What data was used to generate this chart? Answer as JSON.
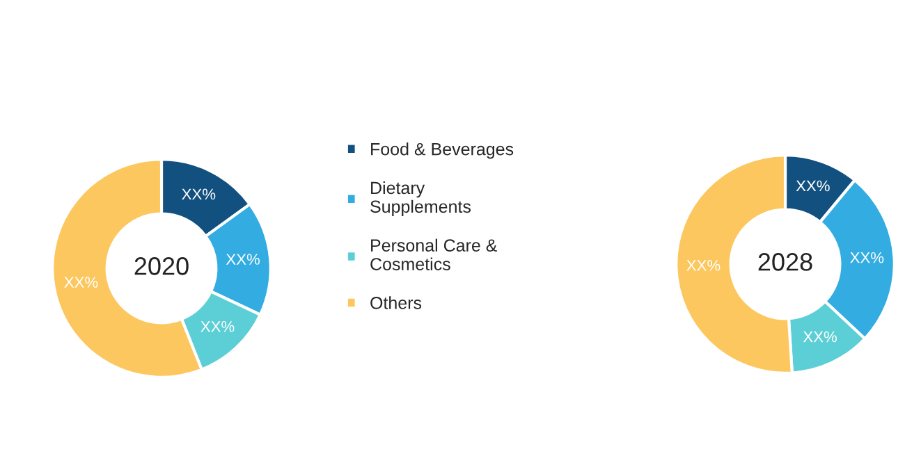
{
  "chart_data": [
    {
      "type": "donut",
      "title": "2020",
      "categories": [
        "Food & Beverages",
        "Dietary\nSupplements",
        "Personal Care &\nCosmetics",
        "Others"
      ],
      "values": [
        15,
        17,
        12,
        56
      ],
      "colors": [
        "#12507f",
        "#33ace2",
        "#5ccfd6",
        "#fcc75f"
      ],
      "value_labels": [
        "XX%",
        "XX%",
        "XX%",
        "XX%"
      ],
      "legend": "right"
    },
    {
      "type": "donut",
      "title": "2028",
      "categories": [
        null,
        null,
        null,
        null
      ],
      "values": [
        11,
        26,
        12,
        51
      ],
      "colors": [
        "#12507f",
        "#33ace2",
        "#5ccfd6",
        "#fcc75f"
      ],
      "value_labels": [
        "XX%",
        "XX%",
        "XX%",
        "XX%"
      ]
    }
  ]
}
